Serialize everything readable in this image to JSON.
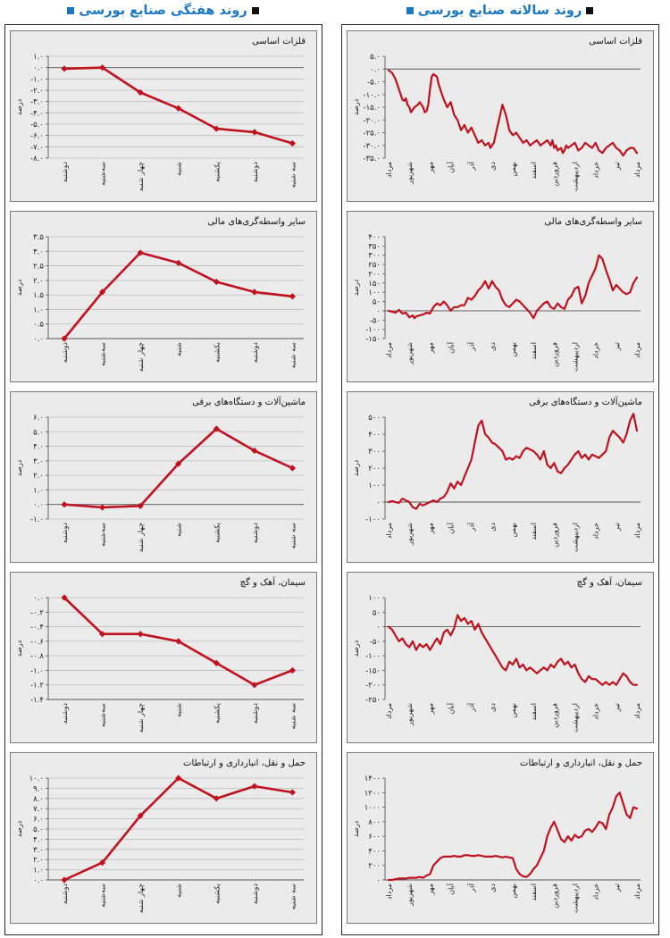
{
  "headers": {
    "weekly": "روند هفتگی صنایع بورسی",
    "yearly": "روند سالانه صنایع بورسی"
  },
  "chart_data": [
    {
      "id": "weekly-0",
      "type": "line",
      "title": "فلزات اساسی",
      "ylabel": "درصد",
      "categories": [
        "دوشنبه",
        "سه‌شنبه",
        "چهار شنبه",
        "شنبه",
        "یکشنبه",
        "دوشنبه",
        "سه شنبه"
      ],
      "values": [
        -0.1,
        0.0,
        -2.2,
        -3.6,
        -5.4,
        -5.7,
        -6.7
      ],
      "yticks": [
        1.0,
        0.0,
        -1.0,
        -2.0,
        -3.0,
        -4.0,
        -5.0,
        -6.0,
        -7.0,
        -8.0
      ],
      "ytick_labels": [
        "۱.۰",
        "۰.۰",
        "-۱.۰",
        "-۲.۰",
        "-۳.۰",
        "-۴.۰",
        "-۵.۰",
        "-۶.۰",
        "-۷.۰",
        "-۸.۰"
      ],
      "ylim": [
        -8.0,
        1.0
      ],
      "grid": true,
      "markers": true
    },
    {
      "id": "weekly-1",
      "type": "line",
      "title": "سایر واسطه‌گری‌های مالی",
      "ylabel": "درصد",
      "categories": [
        "دوشنبه",
        "سه‌شنبه",
        "چهار شنبه",
        "شنبه",
        "یکشنبه",
        "دوشنبه",
        "سه شنبه"
      ],
      "values": [
        0.0,
        1.6,
        2.95,
        2.6,
        1.95,
        1.6,
        1.45
      ],
      "yticks": [
        3.5,
        3.0,
        2.5,
        2.0,
        1.5,
        1.0,
        0.5,
        0.0
      ],
      "ytick_labels": [
        "۳.۵",
        "۳.۰",
        "۲.۵",
        "۲.۰",
        "۱.۵",
        "۱.۰",
        "۰.۵",
        "۰.۰"
      ],
      "ylim": [
        0.0,
        3.5
      ],
      "grid": true,
      "markers": true
    },
    {
      "id": "weekly-2",
      "type": "line",
      "title": "ماشین‌آلات و دستگاه‌های برقی",
      "ylabel": "درصد",
      "categories": [
        "دوشنبه",
        "سه‌شنبه",
        "چهار شنبه",
        "شنبه",
        "یکشنبه",
        "دوشنبه",
        "سه شنبه"
      ],
      "values": [
        0.0,
        -0.2,
        -0.1,
        2.8,
        5.2,
        3.7,
        2.5
      ],
      "yticks": [
        6.0,
        5.0,
        4.0,
        3.0,
        2.0,
        1.0,
        0.0,
        -1.0
      ],
      "ytick_labels": [
        "۶.۰",
        "۵.۰",
        "۴.۰",
        "۳.۰",
        "۲.۰",
        "۱.۰",
        "۰.۰",
        "-۱.۰"
      ],
      "ylim": [
        -1.0,
        6.0
      ],
      "grid": true,
      "markers": true
    },
    {
      "id": "weekly-3",
      "type": "line",
      "title": "سیمان، آهک و گچ",
      "ylabel": "درصد",
      "categories": [
        "دوشنبه",
        "سه‌شنبه",
        "چهار شنبه",
        "شنبه",
        "یکشنبه",
        "دوشنبه",
        "سه شنبه"
      ],
      "values": [
        0.0,
        -0.5,
        -0.5,
        -0.6,
        -0.9,
        -1.2,
        -1.0
      ],
      "yticks": [
        0.0,
        -0.2,
        -0.4,
        -0.6,
        -0.8,
        -1.0,
        -1.2,
        -1.4
      ],
      "ytick_labels": [
        "۰.۰",
        "-۰.۲",
        "-۰.۴",
        "-۰.۶",
        "-۰.۸",
        "-۱.۰",
        "-۱.۲",
        "-۱.۴"
      ],
      "ylim": [
        -1.4,
        0.0
      ],
      "grid": true,
      "markers": true
    },
    {
      "id": "weekly-4",
      "type": "line",
      "title": "حمل و نقل، انبارداری و ارتباطات",
      "ylabel": "درصد",
      "categories": [
        "دوشنبه",
        "سه‌شنبه",
        "چهار شنبه",
        "شنبه",
        "یکشنبه",
        "دوشنبه",
        "سه شنبه"
      ],
      "values": [
        0.0,
        1.7,
        6.3,
        10.0,
        8.0,
        9.2,
        8.6
      ],
      "yticks": [
        10.0,
        9.0,
        8.0,
        7.0,
        6.0,
        5.0,
        4.0,
        3.0,
        2.0,
        1.0,
        0.0
      ],
      "ytick_labels": [
        "۱۰.۰",
        "۹.۰",
        "۸.۰",
        "۷.۰",
        "۶.۰",
        "۵.۰",
        "۴.۰",
        "۳.۰",
        "۲.۰",
        "۱.۰",
        "۰.۰"
      ],
      "ylim": [
        0.0,
        10.0
      ],
      "grid": true,
      "markers": true
    },
    {
      "id": "yearly-0",
      "type": "line",
      "title": "فلزات اساسی",
      "ylabel": "درصد",
      "categories": [
        "مرداد",
        "شهریور",
        "مهر",
        "آبان",
        "آذر",
        "دی",
        "بهمن",
        "اسفند",
        "فروردین",
        "اردیبهشت",
        "خرداد",
        "تیر",
        "مرداد"
      ],
      "x": [
        0,
        2,
        4,
        6,
        8,
        9,
        10,
        11,
        12,
        13,
        14,
        15,
        16,
        17,
        18,
        19,
        20,
        21,
        22,
        23,
        24,
        25,
        26,
        28,
        29,
        30,
        31,
        32,
        34,
        36,
        38,
        40,
        42,
        44,
        46,
        48,
        50,
        52,
        54,
        56,
        58,
        59,
        60,
        61,
        62,
        63,
        64,
        66,
        68,
        70,
        72,
        74,
        76,
        78,
        80,
        82,
        84,
        86,
        88,
        90,
        92,
        93,
        94,
        95,
        96,
        97,
        98,
        100,
        101,
        102,
        103,
        104,
        106,
        108,
        110,
        112,
        114,
        116,
        118,
        120,
        122,
        124,
        126,
        128,
        130,
        132,
        134,
        136,
        138,
        140,
        142,
        144
      ],
      "values": [
        -0.5,
        -1.5,
        -4.0,
        -8.0,
        -12.0,
        -12.5,
        -11.5,
        -14.0,
        -15.0,
        -17.0,
        -16.0,
        -15.0,
        -14.5,
        -14.0,
        -13.0,
        -14.0,
        -15.0,
        -17.0,
        -16.5,
        -14.0,
        -8.0,
        -3.0,
        -2.0,
        -3.0,
        -6.0,
        -8.0,
        -10.0,
        -12.0,
        -15.0,
        -13.0,
        -18.0,
        -20.0,
        -24.0,
        -22.0,
        -25.0,
        -23.0,
        -26.0,
        -29.0,
        -28.0,
        -30.0,
        -29.0,
        -31.0,
        -30.0,
        -29.0,
        -26.0,
        -23.0,
        -20.0,
        -14.0,
        -18.0,
        -24.0,
        -26.0,
        -25.0,
        -27.0,
        -29.0,
        -28.0,
        -30.0,
        -29.0,
        -28.0,
        -30.0,
        -29.0,
        -28.0,
        -29.0,
        -30.0,
        -28.0,
        -31.0,
        -30.0,
        -32.0,
        -31.0,
        -33.0,
        -32.0,
        -30.0,
        -31.0,
        -30.0,
        -29.0,
        -32.0,
        -31.0,
        -29.0,
        -30.0,
        -31.0,
        -29.0,
        -32.0,
        -33.0,
        -31.0,
        -30.0,
        -29.0,
        -31.0,
        -32.0,
        -34.0,
        -32.0,
        -31.0,
        -31.0,
        -33.0
      ],
      "xmax": 144,
      "yticks": [
        5.0,
        0.0,
        -5.0,
        -10.0,
        -15.0,
        -20.0,
        -25.0,
        -30.0,
        -35.0
      ],
      "ytick_labels": [
        "۵.۰",
        "۰.۰",
        "-۵.۰",
        "-۱۰.۰",
        "-۱۵.۰",
        "-۲۰.۰",
        "-۲۵.۰",
        "-۳۰.۰",
        "-۳۵.۰"
      ],
      "ylim": [
        -35.0,
        5.0
      ],
      "grid": false,
      "markers": false
    },
    {
      "id": "yearly-1",
      "type": "line",
      "title": "سایر واسطه‌گری‌های مالی",
      "ylabel": "درصد",
      "categories": [
        "مرداد",
        "شهریور",
        "مهر",
        "آبان",
        "آذر",
        "دی",
        "بهمن",
        "اسفند",
        "فروردین",
        "اردیبهشت",
        "خرداد",
        "تیر",
        "مرداد"
      ],
      "x": [
        0,
        2,
        4,
        6,
        8,
        10,
        12,
        14,
        15,
        16,
        18,
        20,
        22,
        24,
        26,
        28,
        30,
        32,
        34,
        36,
        38,
        40,
        42,
        44,
        46,
        48,
        50,
        52,
        54,
        56,
        58,
        60,
        62,
        64,
        66,
        68,
        70,
        72,
        74,
        76,
        78,
        80,
        82,
        84,
        86,
        88,
        90,
        92,
        94,
        96,
        98,
        100,
        102,
        104,
        106,
        108,
        110,
        112,
        114,
        116,
        118,
        120,
        122,
        124,
        126,
        128,
        130,
        132,
        134,
        136,
        138,
        140,
        142,
        144
      ],
      "values": [
        0.0,
        -5.0,
        -10.0,
        5.0,
        -15.0,
        -10.0,
        -35.0,
        -25.0,
        -40.0,
        -30.0,
        -25.0,
        -20.0,
        -10.0,
        -15.0,
        20.0,
        40.0,
        30.0,
        50.0,
        30.0,
        0.0,
        20.0,
        20.0,
        30.0,
        30.0,
        70.0,
        60.0,
        80.0,
        110.0,
        130.0,
        160.0,
        120.0,
        160.0,
        130.0,
        110.0,
        60.0,
        30.0,
        20.0,
        40.0,
        60.0,
        50.0,
        30.0,
        10.0,
        -10.0,
        -40.0,
        0.0,
        20.0,
        40.0,
        50.0,
        20.0,
        10.0,
        40.0,
        20.0,
        10.0,
        60.0,
        80.0,
        120.0,
        130.0,
        40.0,
        80.0,
        150.0,
        190.0,
        230.0,
        300.0,
        280.0,
        220.0,
        170.0,
        110.0,
        140.0,
        120.0,
        100.0,
        90.0,
        100.0,
        150.0,
        180.0
      ],
      "xmax": 144,
      "yticks": [
        400.0,
        350.0,
        300.0,
        250.0,
        200.0,
        150.0,
        100.0,
        50.0,
        0.0,
        -50.0,
        -100.0,
        -150.0
      ],
      "ytick_labels": [
        "۴۰۰",
        "۳۵۰",
        "۳۰۰",
        "۲۵۰",
        "۲۰۰",
        "۱۵۰",
        "۱۰۰",
        "۵۰",
        "۰",
        "-۵۰",
        "-۱۰۰",
        "-۱۵۰"
      ],
      "ylim": [
        -150.0,
        400.0
      ],
      "grid": false,
      "markers": false
    },
    {
      "id": "yearly-2",
      "type": "line",
      "title": "ماشین‌آلات و دستگاه‌های برقی",
      "ylabel": "درصد",
      "categories": [
        "مرداد",
        "شهریور",
        "مهر",
        "آبان",
        "آذر",
        "دی",
        "بهمن",
        "اسفند",
        "فروردین",
        "اردیبهشت",
        "خرداد",
        "تیر",
        "مرداد"
      ],
      "x": [
        0,
        2,
        4,
        6,
        8,
        10,
        12,
        14,
        16,
        18,
        20,
        22,
        24,
        26,
        28,
        30,
        32,
        34,
        36,
        38,
        40,
        42,
        44,
        46,
        48,
        50,
        52,
        54,
        56,
        58,
        60,
        62,
        64,
        66,
        68,
        70,
        72,
        74,
        76,
        78,
        80,
        82,
        84,
        86,
        88,
        90,
        92,
        94,
        96,
        98,
        100,
        102,
        104,
        106,
        108,
        110,
        112,
        114,
        116,
        118,
        120,
        122,
        124,
        126,
        128,
        130,
        132,
        134,
        136,
        138,
        140,
        142,
        144
      ],
      "values": [
        0.0,
        5.0,
        0.0,
        -5.0,
        20.0,
        10.0,
        0.0,
        -30.0,
        -40.0,
        -10.0,
        -20.0,
        -10.0,
        0.0,
        10.0,
        0.0,
        20.0,
        30.0,
        60.0,
        110.0,
        80.0,
        120.0,
        100.0,
        150.0,
        200.0,
        250.0,
        350.0,
        450.0,
        480.0,
        400.0,
        380.0,
        350.0,
        340.0,
        320.0,
        300.0,
        250.0,
        260.0,
        250.0,
        270.0,
        260.0,
        300.0,
        320.0,
        310.0,
        300.0,
        280.0,
        250.0,
        300.0,
        220.0,
        200.0,
        230.0,
        180.0,
        170.0,
        200.0,
        220.0,
        250.0,
        280.0,
        300.0,
        260.0,
        280.0,
        250.0,
        280.0,
        270.0,
        260.0,
        280.0,
        300.0,
        380.0,
        420.0,
        400.0,
        380.0,
        350.0,
        400.0,
        480.0,
        520.0,
        420.0
      ],
      "xmax": 144,
      "yticks": [
        500.0,
        400.0,
        300.0,
        200.0,
        100.0,
        0.0,
        -100.0
      ],
      "ytick_labels": [
        "۵۰۰",
        "۴۰۰",
        "۳۰۰",
        "۲۰۰",
        "۱۰۰",
        "۰",
        "-۱۰۰"
      ],
      "ylim": [
        -100.0,
        500.0
      ],
      "grid": false,
      "markers": false
    },
    {
      "id": "yearly-3",
      "type": "line",
      "title": "سیمان، آهک و گچ",
      "ylabel": "درصد",
      "categories": [
        "مرداد",
        "شهریور",
        "مهر",
        "آبان",
        "آذر",
        "دی",
        "بهمن",
        "اسفند",
        "فروردین",
        "اردیبهشت",
        "خرداد",
        "تیر",
        "مرداد"
      ],
      "x": [
        0,
        2,
        4,
        6,
        8,
        10,
        12,
        14,
        16,
        18,
        20,
        22,
        24,
        26,
        28,
        30,
        32,
        34,
        36,
        38,
        40,
        42,
        44,
        46,
        48,
        50,
        52,
        54,
        56,
        58,
        60,
        62,
        64,
        66,
        68,
        70,
        72,
        74,
        76,
        78,
        80,
        82,
        84,
        86,
        88,
        90,
        92,
        94,
        96,
        98,
        100,
        102,
        104,
        106,
        108,
        110,
        112,
        114,
        116,
        118,
        120,
        122,
        124,
        126,
        128,
        130,
        132,
        134,
        136,
        138,
        140,
        142,
        144
      ],
      "values": [
        0.0,
        -10.0,
        -30.0,
        -50.0,
        -40.0,
        -60.0,
        -70.0,
        -50.0,
        -80.0,
        -60.0,
        -70.0,
        -60.0,
        -80.0,
        -60.0,
        -40.0,
        -60.0,
        -20.0,
        -10.0,
        -30.0,
        -5.0,
        40.0,
        20.0,
        30.0,
        10.0,
        20.0,
        -10.0,
        10.0,
        -20.0,
        -40.0,
        -60.0,
        -80.0,
        -100.0,
        -120.0,
        -140.0,
        -150.0,
        -120.0,
        -130.0,
        -110.0,
        -140.0,
        -130.0,
        -150.0,
        -140.0,
        -150.0,
        -160.0,
        -150.0,
        -140.0,
        -150.0,
        -130.0,
        -140.0,
        -120.0,
        -110.0,
        -130.0,
        -120.0,
        -140.0,
        -130.0,
        -160.0,
        -180.0,
        -190.0,
        -170.0,
        -180.0,
        -180.0,
        -190.0,
        -200.0,
        -190.0,
        -200.0,
        -190.0,
        -200.0,
        -180.0,
        -160.0,
        -170.0,
        -190.0,
        -200.0,
        -200.0
      ],
      "xmax": 144,
      "yticks": [
        100.0,
        50.0,
        0.0,
        -50.0,
        -100.0,
        -150.0,
        -200.0,
        -250.0
      ],
      "ytick_labels": [
        "۱۰۰",
        "۵۰",
        "۰",
        "-۵۰",
        "-۱۰۰",
        "-۱۵۰",
        "-۲۰۰",
        "-۲۵۰"
      ],
      "ylim": [
        -250.0,
        100.0
      ],
      "grid": false,
      "markers": false
    },
    {
      "id": "yearly-4",
      "type": "line",
      "title": "حمل و نقل، انبارداری و ارتباطات",
      "ylabel": "درصد",
      "categories": [
        "مرداد",
        "شهریور",
        "مهر",
        "آبان",
        "آذر",
        "دی",
        "بهمن",
        "اسفند",
        "فروردین",
        "اردیبهشت",
        "خرداد",
        "تیر",
        "مرداد"
      ],
      "x": [
        0,
        2,
        4,
        6,
        8,
        10,
        12,
        14,
        16,
        18,
        20,
        22,
        24,
        26,
        28,
        30,
        32,
        34,
        36,
        38,
        40,
        42,
        44,
        46,
        48,
        50,
        52,
        54,
        56,
        58,
        60,
        62,
        64,
        66,
        68,
        70,
        72,
        74,
        76,
        78,
        80,
        82,
        84,
        86,
        88,
        90,
        92,
        94,
        96,
        98,
        100,
        102,
        104,
        106,
        108,
        110,
        112,
        114,
        116,
        118,
        120,
        122,
        124,
        126,
        128,
        130,
        132,
        134,
        136,
        138,
        140,
        142,
        144
      ],
      "values": [
        0.0,
        0.0,
        10.0,
        20.0,
        20.0,
        20.0,
        30.0,
        30.0,
        30.0,
        40.0,
        30.0,
        60.0,
        80.0,
        200.0,
        250.0,
        300.0,
        320.0,
        320.0,
        320.0,
        330.0,
        320.0,
        320.0,
        340.0,
        340.0,
        330.0,
        330.0,
        340.0,
        330.0,
        320.0,
        320.0,
        320.0,
        330.0,
        320.0,
        310.0,
        320.0,
        310.0,
        300.0,
        150.0,
        80.0,
        50.0,
        40.0,
        80.0,
        150.0,
        200.0,
        300.0,
        400.0,
        600.0,
        720.0,
        800.0,
        680.0,
        560.0,
        520.0,
        600.0,
        540.0,
        620.0,
        580.0,
        600.0,
        680.0,
        700.0,
        660.0,
        720.0,
        800.0,
        780.0,
        700.0,
        900.0,
        1000.0,
        1150.0,
        1200.0,
        1050.0,
        900.0,
        850.0,
        1000.0,
        980.0
      ],
      "xmax": 144,
      "yticks": [
        1400.0,
        1200.0,
        1000.0,
        800.0,
        600.0,
        400.0,
        200.0,
        0.0
      ],
      "ytick_labels": [
        "۱۴۰۰",
        "۱۲۰۰",
        "۱۰۰۰",
        "۸۰۰",
        "۶۰۰",
        "۴۰۰",
        "۲۰۰",
        "۰"
      ],
      "ylim": [
        0.0,
        1400.0
      ],
      "grid": false,
      "markers": false
    }
  ],
  "colors": {
    "series": "#c0111f",
    "accent": "#1a78c2",
    "panel_bg": "#ebebeb",
    "grid": "#bdbdbd"
  }
}
